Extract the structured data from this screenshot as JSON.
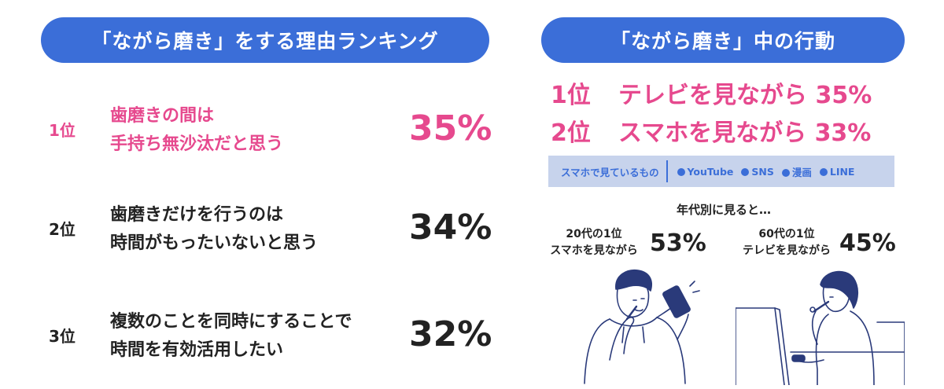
{
  "left": {
    "title": "「ながら磨き」をする理由ランキング",
    "ranking": [
      {
        "rank": "1位",
        "line1": "歯磨きの間は",
        "line2": "手持ち無沙汰だと思う",
        "percent": "35%"
      },
      {
        "rank": "2位",
        "line1": "歯磨きだけを行うのは",
        "line2": "時間がもったいないと思う",
        "percent": "34%"
      },
      {
        "rank": "3位",
        "line1": "複数のことを同時にすることで",
        "line2": "時間を有効活用したい",
        "percent": "32%"
      }
    ]
  },
  "right": {
    "title": "「ながら磨き」中の行動",
    "behaviors": [
      {
        "rank": "1位",
        "label": "テレビを見ながら",
        "percent": "35%"
      },
      {
        "rank": "2位",
        "label": "スマホを見ながら",
        "percent": "33%"
      }
    ],
    "smartphone": {
      "label": "スマホで見ているもの",
      "items": [
        "YouTube",
        "SNS",
        "漫画",
        "LINE"
      ]
    },
    "by_age": {
      "heading": "年代別に見ると…",
      "groups": [
        {
          "line1": "20代の1位",
          "line2": "スマホを見ながら",
          "percent": "53%"
        },
        {
          "line1": "60代の1位",
          "line2": "テレビを見ながら",
          "percent": "45%"
        }
      ]
    }
  },
  "colors": {
    "accent_blue": "#3b6ed8",
    "accent_pink": "#e6498e",
    "sub_bg": "#c7d3ec",
    "text": "#222222"
  },
  "chart_data": [
    {
      "type": "table",
      "title": "「ながら磨き」をする理由ランキング",
      "columns": [
        "rank",
        "reason",
        "percent"
      ],
      "rows": [
        [
          "1位",
          "歯磨きの間は手持ち無沙汰だと思う",
          35
        ],
        [
          "2位",
          "歯磨きだけを行うのは時間がもったいないと思う",
          34
        ],
        [
          "3位",
          "複数のことを同時にすることで時間を有効活用したい",
          32
        ]
      ]
    },
    {
      "type": "table",
      "title": "「ながら磨き」中の行動",
      "columns": [
        "rank",
        "behavior",
        "percent"
      ],
      "rows": [
        [
          "1位",
          "テレビを見ながら",
          35
        ],
        [
          "2位",
          "スマホを見ながら",
          33
        ]
      ]
    }
  ]
}
